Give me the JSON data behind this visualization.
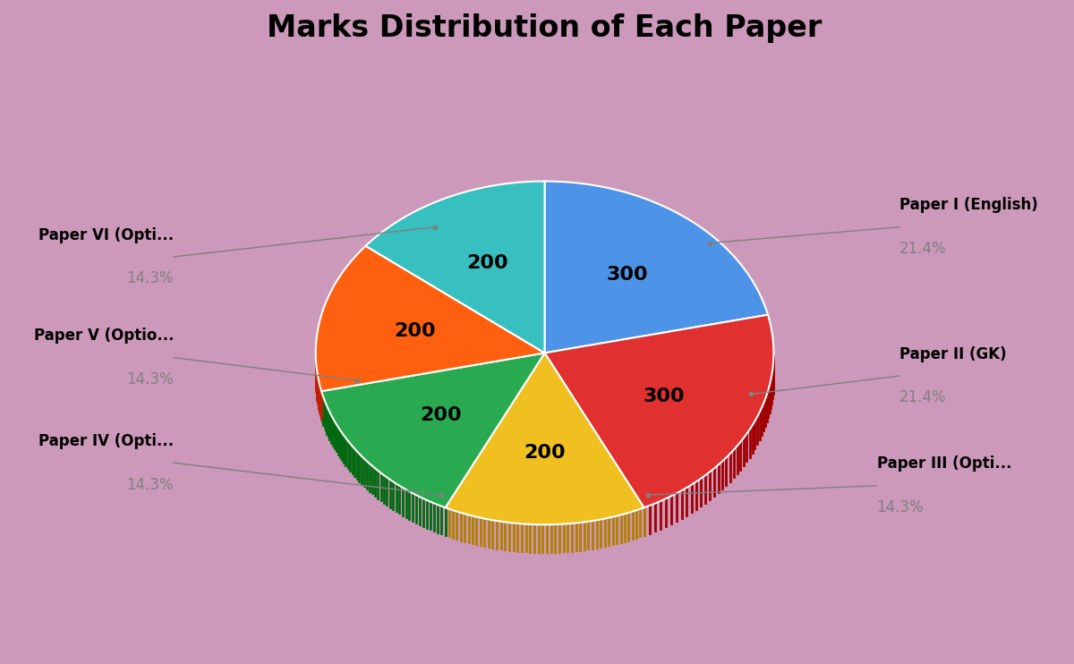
{
  "title": "Marks Distribution of Each Paper",
  "title_fontsize": 24,
  "title_fontweight": "bold",
  "background_color": "#cc99bb",
  "labels": [
    "Paper I (English)",
    "Paper II (GK)",
    "Paper III (Opti...",
    "Paper IV (Opti...",
    "Paper V (Optio...",
    "Paper VI (Opti..."
  ],
  "values": [
    300,
    300,
    200,
    200,
    200,
    200
  ],
  "colors": [
    "#4d94e8",
    "#e03030",
    "#f0c020",
    "#2aaa50",
    "#ff6010",
    "#38bfbf"
  ],
  "percentages": [
    "21.4%",
    "21.4%",
    "14.3%",
    "14.3%",
    "14.3%",
    "14.3%"
  ],
  "startangle": 90,
  "shadow": false
}
